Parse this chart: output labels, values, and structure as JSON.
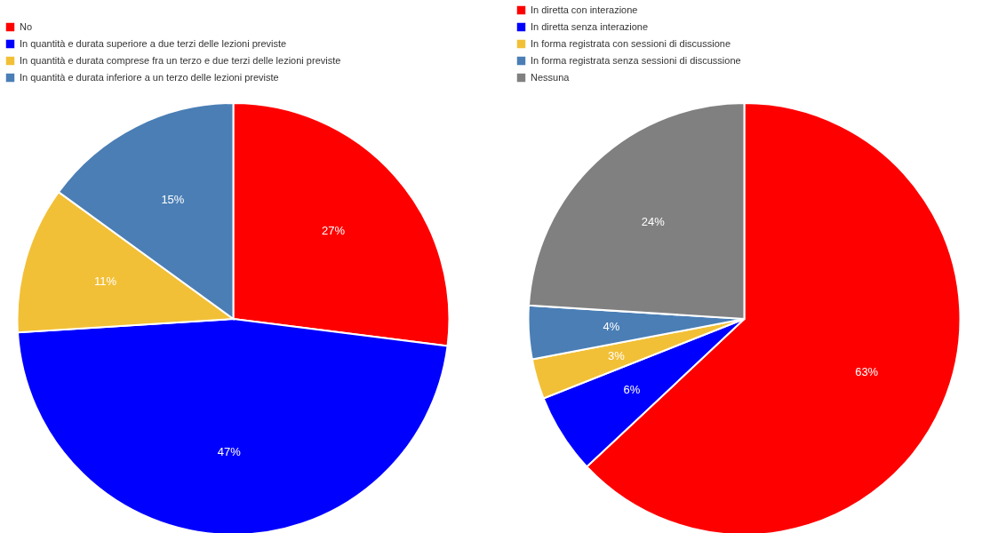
{
  "chart_data": [
    {
      "type": "pie",
      "categories": [
        "No",
        "In quantità e durata superiore a due terzi delle lezioni previste",
        "In quantità e durata comprese fra un terzo e due terzi delle lezioni previste",
        "In quantità e durata inferiore a un terzo delle lezioni previste"
      ],
      "values": [
        27,
        47,
        11,
        15
      ],
      "colors": [
        "#ff0000",
        "#0000ff",
        "#f2c037",
        "#4a7eb5"
      ],
      "value_labels": [
        "27%",
        "47%",
        "11%",
        "15%"
      ],
      "legend": "top"
    },
    {
      "type": "pie",
      "categories": [
        "In diretta con interazione",
        "In diretta senza interazione",
        "In forma registrata con sessioni di discussione",
        "In forma registrata senza sessioni di discussione",
        "Nessuna"
      ],
      "values": [
        63,
        6,
        3,
        4,
        24
      ],
      "colors": [
        "#ff0000",
        "#0000ff",
        "#f2c037",
        "#4a7eb5",
        "#808080"
      ],
      "value_labels": [
        "63%",
        "6%",
        "3%",
        "4%",
        "24%"
      ],
      "legend": "top"
    }
  ]
}
